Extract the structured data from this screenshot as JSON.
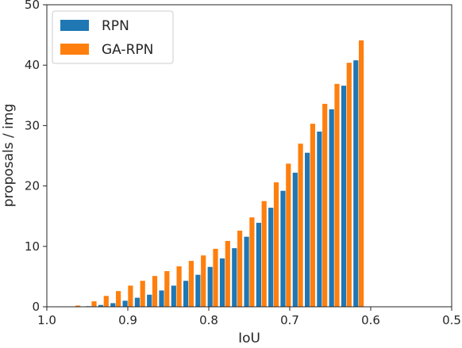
{
  "chart_data": {
    "type": "bar",
    "title": "",
    "xlabel": "IoU",
    "ylabel": "proposals / img",
    "xlim": [
      1.0,
      0.5
    ],
    "ylim": [
      0,
      50
    ],
    "x_reversed": true,
    "xticks": [
      1.0,
      0.9,
      0.8,
      0.7,
      0.6,
      0.5
    ],
    "xtick_labels": [
      "1.0",
      "0.9",
      "0.8",
      "0.7",
      "0.6",
      "0.5"
    ],
    "yticks": [
      0,
      10,
      20,
      30,
      40,
      50
    ],
    "ytick_labels": [
      "0",
      "10",
      "20",
      "30",
      "40",
      "50"
    ],
    "grid": false,
    "legend_position": "top-left",
    "x": [
      0.965,
      0.945,
      0.93,
      0.915,
      0.9,
      0.885,
      0.87,
      0.855,
      0.84,
      0.825,
      0.81,
      0.795,
      0.78,
      0.765,
      0.75,
      0.735,
      0.72,
      0.705,
      0.69,
      0.675,
      0.66,
      0.645,
      0.63,
      0.615,
      0.6,
      0.585,
      0.57,
      0.555,
      0.54,
      0.525
    ],
    "series": [
      {
        "name": "RPN",
        "color": "#1f77b4",
        "values": [
          0.0,
          0.1,
          0.3,
          0.6,
          1.0,
          1.5,
          2.0,
          2.7,
          3.5,
          4.3,
          5.3,
          6.6,
          8.0,
          9.7,
          11.6,
          13.9,
          16.4,
          19.2,
          22.2,
          25.5,
          29.0,
          32.7,
          36.6,
          40.8,
          0,
          0,
          0,
          0,
          0,
          0
        ]
      },
      {
        "name": "GA-RPN",
        "color": "#ff7f0e",
        "values": [
          0.2,
          0.9,
          1.8,
          2.6,
          3.5,
          4.3,
          5.1,
          5.9,
          6.7,
          7.6,
          8.5,
          9.6,
          10.9,
          12.6,
          14.8,
          17.5,
          20.6,
          23.7,
          27.0,
          30.3,
          33.6,
          36.9,
          40.4,
          44.1,
          0,
          0,
          0,
          0,
          0,
          0
        ]
      }
    ]
  }
}
